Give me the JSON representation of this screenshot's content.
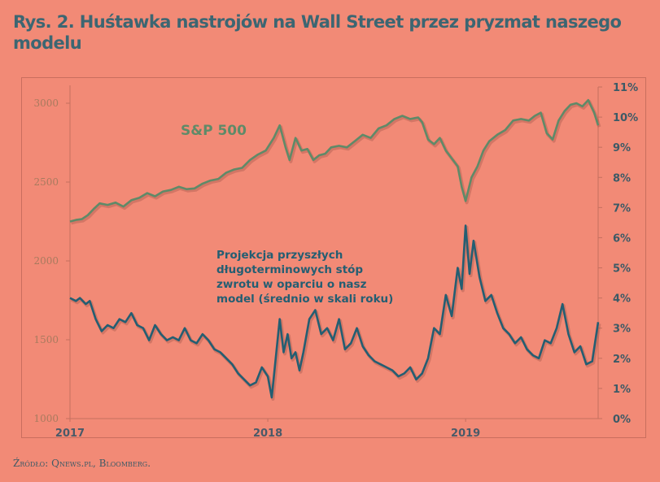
{
  "title": "Rys. 2. Huśtawka nastrojów na Wall Street przez pryzmat naszego modelu",
  "source": "Źródło: Qnews.pl, Bloomberg.",
  "colors": {
    "background": "#f28a76",
    "sp500": "#5f8a68",
    "returns": "#245e72",
    "left_axis_text": "#a87a5e",
    "right_axis_text": "#3c5a66",
    "title": "#3c6672"
  },
  "chart_data": {
    "type": "line",
    "title": "Rys. 2. Huśtawka nastrojów na Wall Street przez pryzmat naszego modelu",
    "xlabel": "",
    "x_ticks": [
      "2017",
      "2018",
      "2019"
    ],
    "x_range": [
      2017.0,
      2019.67
    ],
    "left_axis": {
      "label": "",
      "ticks": [
        "1000",
        "1500",
        "2000",
        "2500",
        "3000"
      ],
      "ylim": [
        1000,
        3000
      ]
    },
    "right_axis": {
      "label": "",
      "ticks": [
        "0%",
        "1%",
        "2%",
        "3%",
        "4%",
        "5%",
        "6%",
        "7%",
        "8%",
        "9%",
        "10%",
        "11%"
      ],
      "ylim": [
        0,
        11
      ]
    },
    "annotations": [
      {
        "text": "S&P 500",
        "series": "sp500"
      },
      {
        "text_lines": [
          "Projekcja przyszłych",
          "długoterminowych stóp",
          "zwrotu w oparciu o nasz",
          "model (średnio w skali roku)"
        ],
        "series": "returns"
      }
    ],
    "series": [
      {
        "name": "S&P 500",
        "axis": "left",
        "x": [
          2017.0,
          2017.03,
          2017.06,
          2017.09,
          2017.12,
          2017.15,
          2017.19,
          2017.23,
          2017.27,
          2017.31,
          2017.35,
          2017.39,
          2017.43,
          2017.47,
          2017.51,
          2017.55,
          2017.59,
          2017.63,
          2017.67,
          2017.71,
          2017.75,
          2017.79,
          2017.83,
          2017.87,
          2017.91,
          2017.95,
          2017.99,
          2018.03,
          2018.06,
          2018.09,
          2018.11,
          2018.14,
          2018.17,
          2018.2,
          2018.23,
          2018.26,
          2018.29,
          2018.32,
          2018.36,
          2018.4,
          2018.44,
          2018.48,
          2018.52,
          2018.56,
          2018.6,
          2018.64,
          2018.68,
          2018.72,
          2018.76,
          2018.78,
          2018.81,
          2018.84,
          2018.87,
          2018.9,
          2018.93,
          2018.96,
          2018.98,
          2019.0,
          2019.03,
          2019.06,
          2019.09,
          2019.12,
          2019.16,
          2019.2,
          2019.24,
          2019.28,
          2019.32,
          2019.35,
          2019.38,
          2019.41,
          2019.44,
          2019.47,
          2019.5,
          2019.53,
          2019.56,
          2019.59,
          2019.62,
          2019.65,
          2019.67
        ],
        "values": [
          2250,
          2260,
          2265,
          2290,
          2330,
          2365,
          2355,
          2370,
          2345,
          2385,
          2400,
          2430,
          2410,
          2440,
          2450,
          2470,
          2455,
          2460,
          2490,
          2510,
          2520,
          2560,
          2580,
          2590,
          2640,
          2675,
          2700,
          2780,
          2860,
          2720,
          2640,
          2780,
          2700,
          2710,
          2640,
          2670,
          2680,
          2720,
          2730,
          2720,
          2760,
          2800,
          2780,
          2840,
          2860,
          2900,
          2920,
          2900,
          2910,
          2880,
          2770,
          2740,
          2780,
          2700,
          2650,
          2600,
          2470,
          2380,
          2530,
          2600,
          2700,
          2760,
          2800,
          2830,
          2890,
          2900,
          2890,
          2920,
          2940,
          2810,
          2770,
          2890,
          2950,
          2990,
          3000,
          2980,
          3020,
          2940,
          2860
        ]
      },
      {
        "name": "Projekcja przyszłych długoterminowych stóp zwrotu (średnio w skali roku)",
        "axis": "right",
        "x": [
          2017.0,
          2017.03,
          2017.05,
          2017.08,
          2017.1,
          2017.13,
          2017.16,
          2017.19,
          2017.22,
          2017.25,
          2017.28,
          2017.31,
          2017.34,
          2017.37,
          2017.4,
          2017.43,
          2017.46,
          2017.49,
          2017.52,
          2017.55,
          2017.58,
          2017.61,
          2017.64,
          2017.67,
          2017.7,
          2017.73,
          2017.76,
          2017.79,
          2017.82,
          2017.85,
          2017.88,
          2017.91,
          2017.94,
          2017.97,
          2018.0,
          2018.02,
          2018.04,
          2018.06,
          2018.08,
          2018.1,
          2018.12,
          2018.14,
          2018.16,
          2018.18,
          2018.21,
          2018.24,
          2018.27,
          2018.3,
          2018.33,
          2018.36,
          2018.39,
          2018.42,
          2018.45,
          2018.48,
          2018.51,
          2018.54,
          2018.57,
          2018.6,
          2018.63,
          2018.66,
          2018.69,
          2018.72,
          2018.75,
          2018.78,
          2018.81,
          2018.84,
          2018.87,
          2018.9,
          2018.93,
          2018.96,
          2018.98,
          2019.0,
          2019.02,
          2019.04,
          2019.07,
          2019.1,
          2019.13,
          2019.16,
          2019.19,
          2019.22,
          2019.25,
          2019.28,
          2019.31,
          2019.34,
          2019.37,
          2019.4,
          2019.43,
          2019.46,
          2019.49,
          2019.52,
          2019.55,
          2019.58,
          2019.61,
          2019.64,
          2019.67
        ],
        "values": [
          4.0,
          3.9,
          4.0,
          3.8,
          3.9,
          3.3,
          2.9,
          3.1,
          3.0,
          3.3,
          3.2,
          3.5,
          3.1,
          3.0,
          2.6,
          3.1,
          2.8,
          2.6,
          2.7,
          2.6,
          3.0,
          2.6,
          2.5,
          2.8,
          2.6,
          2.3,
          2.2,
          2.0,
          1.8,
          1.5,
          1.3,
          1.1,
          1.2,
          1.7,
          1.4,
          0.7,
          2.0,
          3.3,
          2.2,
          2.8,
          2.0,
          2.2,
          1.6,
          2.2,
          3.3,
          3.6,
          2.8,
          3.0,
          2.6,
          3.3,
          2.3,
          2.5,
          3.0,
          2.4,
          2.1,
          1.9,
          1.8,
          1.7,
          1.6,
          1.4,
          1.5,
          1.7,
          1.3,
          1.5,
          2.0,
          3.0,
          2.8,
          4.1,
          3.4,
          5.0,
          4.3,
          6.4,
          4.8,
          5.9,
          4.7,
          3.9,
          4.1,
          3.5,
          3.0,
          2.8,
          2.5,
          2.7,
          2.3,
          2.1,
          2.0,
          2.6,
          2.5,
          3.0,
          3.8,
          2.8,
          2.2,
          2.4,
          1.8,
          1.9,
          3.2
        ]
      }
    ]
  }
}
